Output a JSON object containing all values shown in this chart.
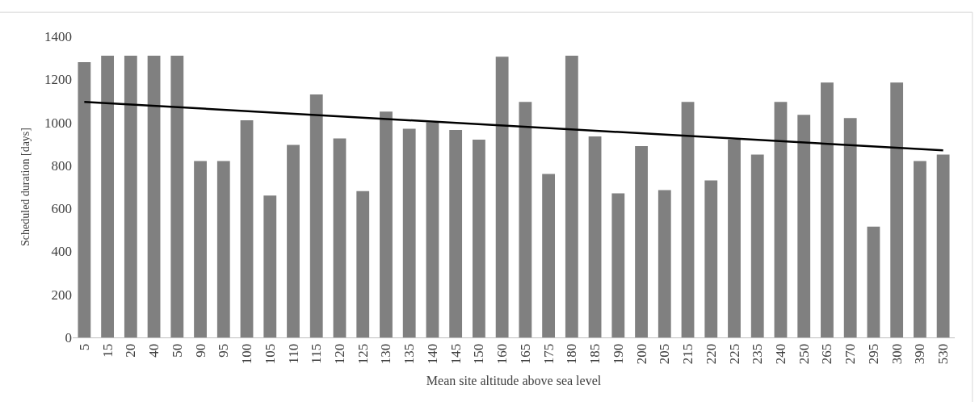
{
  "chart_data": {
    "type": "bar",
    "xlabel": "Mean site altitude above sea level",
    "ylabel": "Scheduled duration [days]",
    "categories": [
      "5",
      "15",
      "20",
      "40",
      "50",
      "90",
      "95",
      "100",
      "105",
      "110",
      "115",
      "120",
      "125",
      "130",
      "135",
      "140",
      "145",
      "150",
      "160",
      "165",
      "175",
      "180",
      "185",
      "190",
      "200",
      "205",
      "215",
      "220",
      "225",
      "235",
      "240",
      "250",
      "265",
      "270",
      "295",
      "300",
      "390",
      "530"
    ],
    "series": [
      {
        "color": "#808080",
        "values": [
          1280,
          1310,
          1310,
          1310,
          1310,
          820,
          820,
          1010,
          660,
          895,
          1130,
          925,
          680,
          1050,
          970,
          1000,
          965,
          920,
          1305,
          1095,
          760,
          1310,
          935,
          670,
          890,
          685,
          1095,
          730,
          920,
          850,
          1095,
          1035,
          1185,
          1020,
          515,
          1185,
          820,
          850
        ]
      },
      {
        "type": "line",
        "color": "#000000",
        "x": [
          "5",
          "530"
        ],
        "values": [
          1095,
          870
        ]
      }
    ],
    "ylim": [
      0,
      1400
    ],
    "yticks": [
      0,
      200,
      400,
      600,
      800,
      1000,
      1200,
      1400
    ],
    "grid": false,
    "legend": false
  }
}
